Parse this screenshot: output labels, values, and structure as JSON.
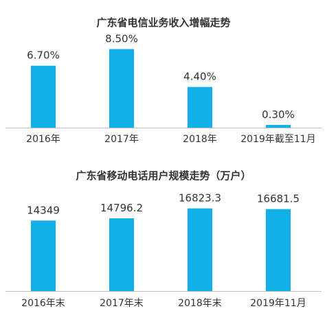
{
  "chart_data": [
    {
      "type": "bar",
      "title": "广东省电信业务收入增幅走势",
      "categories": [
        "2016年",
        "2017年",
        "2018年",
        "2019年截至11月"
      ],
      "values": [
        6.7,
        8.5,
        4.4,
        0.3
      ],
      "value_labels": [
        "6.70%",
        "8.50%",
        "4.40%",
        "0.30%"
      ],
      "ylim": [
        0,
        9.5
      ],
      "color": "#12b0e8",
      "grid": false,
      "legend": "none"
    },
    {
      "type": "bar",
      "title": "广东省移动电话用户规模走势（万户）",
      "categories": [
        "2016年末",
        "2017年末",
        "2018年末",
        "2019年11月"
      ],
      "values": [
        14349,
        14796.2,
        16823.3,
        16681.5
      ],
      "value_labels": [
        "14349",
        "14796.2",
        "16823.3",
        "16681.5"
      ],
      "ylim": [
        0,
        19000
      ],
      "color": "#12b0e8",
      "grid": false,
      "legend": "none"
    }
  ]
}
